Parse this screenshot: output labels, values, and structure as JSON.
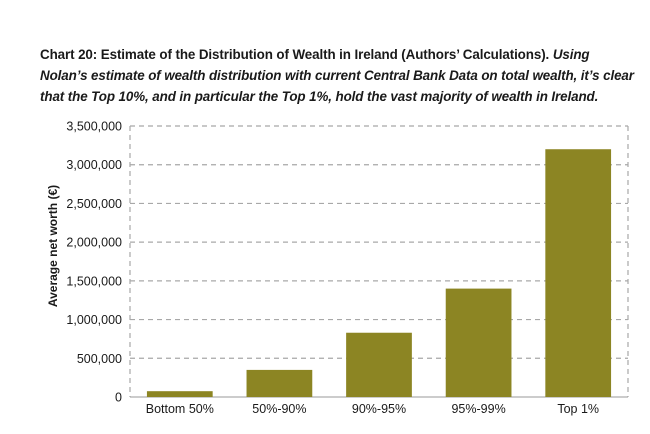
{
  "title": "Chart 20: Estimate of the Distribution of Wealth in Ireland (Authors’ Calculations).",
  "subtitle": "Using Nolan’s estimate of wealth distribution with current Central Bank Data on total wealth, it’s clear that the Top 10%, and in particular the Top 1%, hold the vast majority of wealth in Ireland.",
  "colors": {
    "bar": "#8c8523",
    "grid": "#a8a8a8"
  },
  "chart_data": {
    "type": "bar",
    "categories": [
      "Bottom 50%",
      "50%-90%",
      "90%-95%",
      "95%-99%",
      "Top 1%"
    ],
    "values": [
      75000,
      350000,
      830000,
      1400000,
      3200000
    ],
    "xlabel": "",
    "ylabel": "Average net worth (€)",
    "ylim": [
      0,
      3500000
    ],
    "yticks": [
      0,
      500000,
      1000000,
      1500000,
      2000000,
      2500000,
      3000000,
      3500000
    ],
    "ytick_labels": [
      "0",
      "500,000",
      "1,000,000",
      "1,500,000",
      "2,000,000",
      "2,500,000",
      "3,000,000",
      "3,500,000"
    ],
    "grid": true,
    "legend": "none"
  }
}
